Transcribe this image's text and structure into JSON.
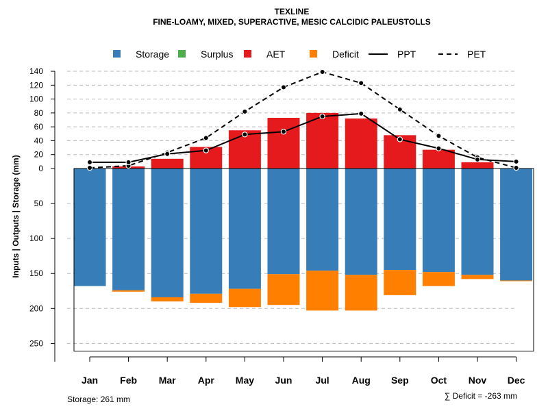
{
  "chart_data": {
    "type": "bar",
    "title": "TEXLINE",
    "subtitle": "FINE-LOAMY, MIXED, SUPERACTIVE, MESIC CALCIDIC PALEUSTOLLS",
    "ylabel": "Inputs | Outputs | Storage     (mm)",
    "categories": [
      "Jan",
      "Feb",
      "Mar",
      "Apr",
      "May",
      "Jun",
      "Jul",
      "Aug",
      "Sep",
      "Oct",
      "Nov",
      "Dec"
    ],
    "upper_ticks": [
      "0",
      "20",
      "40",
      "60",
      "80",
      "100",
      "120",
      "140"
    ],
    "lower_ticks": [
      "50",
      "100",
      "150",
      "200",
      "250"
    ],
    "upper_range": [
      0,
      140
    ],
    "lower_range": [
      0,
      261
    ],
    "legend": [
      {
        "key": "storage",
        "label": "Storage",
        "kind": "box",
        "color": "#377EB8"
      },
      {
        "key": "surplus",
        "label": "Surplus",
        "kind": "box",
        "color": "#4DAF4A"
      },
      {
        "key": "aet",
        "label": "AET",
        "kind": "box",
        "color": "#E41A1C"
      },
      {
        "key": "deficit",
        "label": "Deficit",
        "kind": "box",
        "color": "#FF7F00"
      },
      {
        "key": "ppt",
        "label": "PPT",
        "kind": "solid",
        "color": "#000000"
      },
      {
        "key": "pet",
        "label": "PET",
        "kind": "dashed",
        "color": "#000000"
      }
    ],
    "series": [
      {
        "name": "AET",
        "color": "#E41A1C",
        "values": [
          0,
          3,
          14,
          31,
          55,
          73,
          80,
          72,
          48,
          27,
          9,
          0
        ]
      },
      {
        "name": "Storage",
        "color": "#377EB8",
        "values": [
          168,
          174,
          184,
          179,
          172,
          151,
          146,
          152,
          145,
          148,
          152,
          160
        ]
      },
      {
        "name": "Deficit",
        "color": "#FF7F00",
        "values": [
          0,
          2,
          6,
          13,
          26,
          44,
          57,
          51,
          36,
          20,
          6,
          1
        ]
      },
      {
        "name": "PPT",
        "color": "#000000",
        "values": [
          9,
          9,
          21,
          26,
          49,
          53,
          75,
          79,
          42,
          29,
          13,
          10
        ]
      },
      {
        "name": "PET",
        "color": "#000000",
        "values": [
          1,
          4,
          23,
          44,
          82,
          117,
          139,
          123,
          85,
          47,
          16,
          1
        ]
      }
    ]
  },
  "footer": {
    "storage_note": "Storage: 261 mm",
    "deficit_note": "∑ Deficit = -263 mm"
  }
}
